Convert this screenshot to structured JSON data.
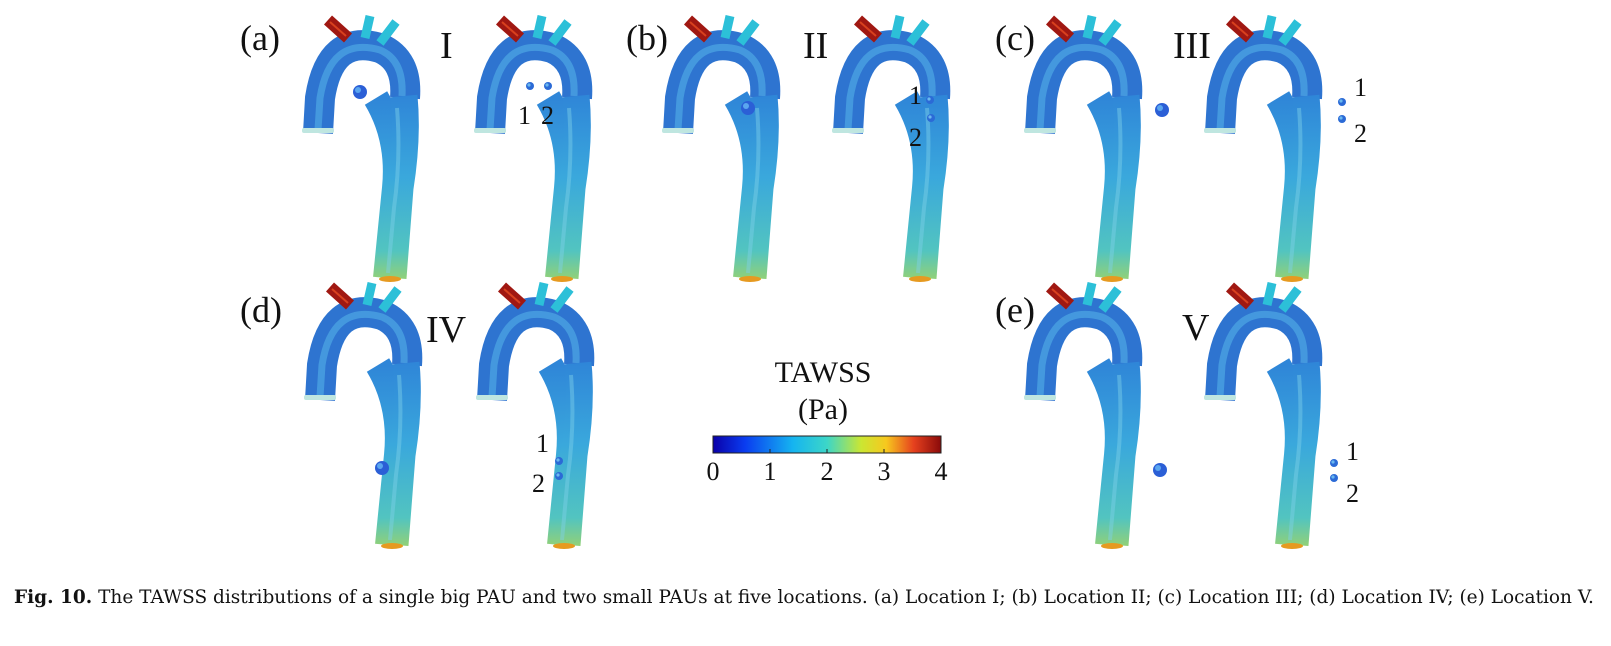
{
  "panels": [
    {
      "letter": "(a)",
      "roman": "I",
      "markers": [
        "1",
        "2"
      ]
    },
    {
      "letter": "(b)",
      "roman": "II",
      "markers": [
        "1",
        "2"
      ]
    },
    {
      "letter": "(c)",
      "roman": "III",
      "markers": [
        "1",
        "2"
      ]
    },
    {
      "letter": "(d)",
      "roman": "IV",
      "markers": [
        "1",
        "2"
      ]
    },
    {
      "letter": "(e)",
      "roman": "V",
      "markers": [
        "1",
        "2"
      ]
    }
  ],
  "colorbar": {
    "title": "TAWSS",
    "unit": "(Pa)",
    "ticks": [
      "0",
      "1",
      "2",
      "3",
      "4"
    ],
    "range": [
      0,
      4
    ],
    "colormap": [
      "#0a00a8",
      "#0a3cf0",
      "#15b4f0",
      "#3cd6c8",
      "#cbe632",
      "#f7c81e",
      "#e6411e",
      "#8a0a0a"
    ]
  },
  "colors": {
    "aorta_body": "#2f7fd8",
    "aorta_highlight": "#55b8ee",
    "descending": "#43b2d6",
    "artery_red": "#a01812",
    "artery_cyan": "#2cc0d8",
    "outlet": "#e69a20",
    "inlet": "#bfe6e0"
  },
  "caption": {
    "label": "Fig. 10.",
    "text": "The TAWSS distributions of a single big PAU and two small PAUs at five locations. (a) Location I; (b) Location II; (c) Location III; (d) Location IV; (e) Location V."
  }
}
